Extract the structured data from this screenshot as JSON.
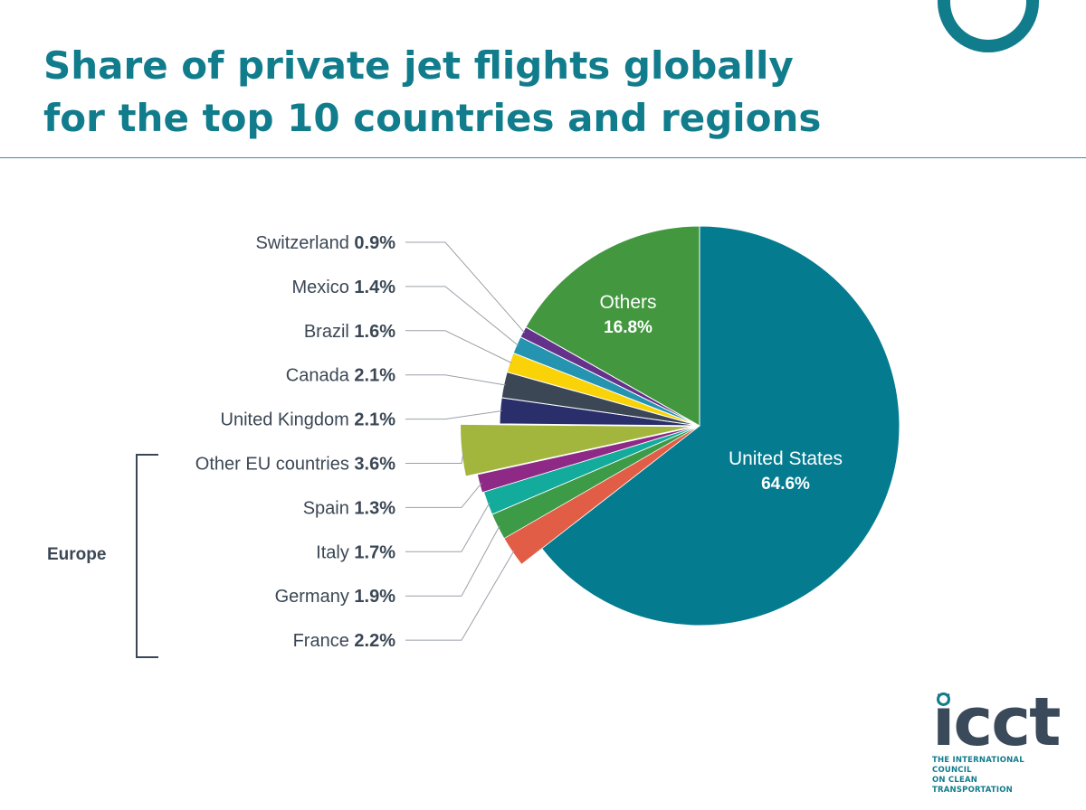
{
  "title": {
    "line1": "Share of private jet flights globally",
    "line2": "for the top 10 countries and regions"
  },
  "chart_data": {
    "type": "pie",
    "unit": "%",
    "slices": [
      {
        "label": "United States",
        "value": 64.6,
        "color": "#047b8f"
      },
      {
        "label": "France",
        "value": 2.2,
        "color": "#e25d45"
      },
      {
        "label": "Germany",
        "value": 1.9,
        "color": "#3d9a47"
      },
      {
        "label": "Italy",
        "value": 1.7,
        "color": "#12ab9c"
      },
      {
        "label": "Spain",
        "value": 1.3,
        "color": "#8e2a86"
      },
      {
        "label": "Other EU countries",
        "value": 3.6,
        "color": "#a2b53c"
      },
      {
        "label": "United Kingdom",
        "value": 2.1,
        "color": "#2a2f6b"
      },
      {
        "label": "Canada",
        "value": 2.1,
        "color": "#3b4755"
      },
      {
        "label": "Brazil",
        "value": 1.6,
        "color": "#f9d208"
      },
      {
        "label": "Mexico",
        "value": 1.4,
        "color": "#2594b0"
      },
      {
        "label": "Switzerland",
        "value": 0.9,
        "color": "#64318b"
      },
      {
        "label": "Others",
        "value": 16.8,
        "color": "#43973f"
      }
    ],
    "exploded_group": {
      "label": "Europe",
      "members": [
        "Other EU countries",
        "Spain",
        "Italy",
        "Germany",
        "France"
      ]
    }
  },
  "logo": {
    "word": "icct",
    "tagline_line1": "THE INTERNATIONAL COUNCIL",
    "tagline_line2": "ON CLEAN TRANSPORTATION"
  }
}
